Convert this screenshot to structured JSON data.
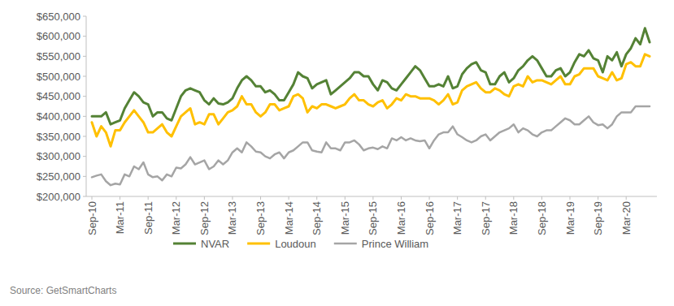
{
  "chart_data": {
    "type": "line",
    "source": "Source: GetSmartCharts",
    "categories": [
      "Sep-10",
      null,
      null,
      null,
      null,
      null,
      "Mar-11",
      null,
      null,
      null,
      null,
      null,
      "Sep-11",
      null,
      null,
      null,
      null,
      null,
      "Mar-12",
      null,
      null,
      null,
      null,
      null,
      "Sep-12",
      null,
      null,
      null,
      null,
      null,
      "Mar-13",
      null,
      null,
      null,
      null,
      null,
      "Sep-13",
      null,
      null,
      null,
      null,
      null,
      "Mar-14",
      null,
      null,
      null,
      null,
      null,
      "Sep-14",
      null,
      null,
      null,
      null,
      null,
      "Mar-15",
      null,
      null,
      null,
      null,
      null,
      "Sep-15",
      null,
      null,
      null,
      null,
      null,
      "Mar-16",
      null,
      null,
      null,
      null,
      null,
      "Sep-16",
      null,
      null,
      null,
      null,
      null,
      "Mar-17",
      null,
      null,
      null,
      null,
      null,
      "Sep-17",
      null,
      null,
      null,
      null,
      null,
      "Mar-18",
      null,
      null,
      null,
      null,
      null,
      "Sep-18",
      null,
      null,
      null,
      null,
      null,
      "Mar-19",
      null,
      null,
      null,
      null,
      null,
      "Sep-19",
      null,
      null,
      null,
      null,
      null,
      "Mar-20",
      null,
      null,
      null,
      null,
      null
    ],
    "series": [
      {
        "name": "NVAR",
        "color": "#548235",
        "values": [
          400000,
          400000,
          400000,
          410000,
          380000,
          385000,
          390000,
          420000,
          440000,
          460000,
          450000,
          435000,
          430000,
          400000,
          410000,
          410000,
          395000,
          390000,
          420000,
          450000,
          465000,
          470000,
          465000,
          460000,
          440000,
          430000,
          445000,
          432000,
          430000,
          435000,
          445000,
          470000,
          490000,
          500000,
          490000,
          475000,
          475000,
          460000,
          465000,
          455000,
          440000,
          440000,
          460000,
          480000,
          510000,
          500000,
          495000,
          470000,
          480000,
          485000,
          490000,
          455000,
          465000,
          475000,
          485000,
          495000,
          510000,
          510000,
          500000,
          500000,
          480000,
          465000,
          490000,
          485000,
          470000,
          465000,
          480000,
          495000,
          510000,
          525000,
          515000,
          495000,
          475000,
          475000,
          480000,
          475000,
          500000,
          470000,
          475000,
          505000,
          520000,
          530000,
          535000,
          515000,
          510000,
          480000,
          480000,
          500000,
          510000,
          485000,
          495000,
          515000,
          525000,
          540000,
          550000,
          540000,
          520000,
          500000,
          500000,
          515000,
          520000,
          500000,
          510000,
          535000,
          555000,
          550000,
          565000,
          545000,
          540000,
          510000,
          550000,
          540000,
          560000,
          525000,
          555000,
          570000,
          595000,
          580000,
          620000,
          585000
        ]
      },
      {
        "name": "Loudoun",
        "color": "#ffc000",
        "values": [
          385000,
          350000,
          375000,
          360000,
          325000,
          365000,
          365000,
          385000,
          400000,
          415000,
          400000,
          385000,
          360000,
          360000,
          370000,
          380000,
          360000,
          350000,
          375000,
          400000,
          410000,
          420000,
          380000,
          385000,
          380000,
          405000,
          405000,
          380000,
          395000,
          410000,
          415000,
          425000,
          450000,
          430000,
          430000,
          410000,
          400000,
          410000,
          430000,
          430000,
          415000,
          420000,
          425000,
          450000,
          455000,
          445000,
          410000,
          425000,
          420000,
          430000,
          430000,
          425000,
          420000,
          425000,
          430000,
          445000,
          455000,
          440000,
          440000,
          430000,
          425000,
          435000,
          440000,
          420000,
          430000,
          445000,
          440000,
          455000,
          450000,
          450000,
          445000,
          445000,
          445000,
          440000,
          430000,
          440000,
          455000,
          430000,
          435000,
          465000,
          475000,
          480000,
          485000,
          470000,
          460000,
          460000,
          470000,
          465000,
          455000,
          450000,
          475000,
          480000,
          475000,
          500000,
          485000,
          490000,
          490000,
          485000,
          480000,
          490000,
          500000,
          480000,
          480000,
          500000,
          505000,
          520000,
          520000,
          520000,
          500000,
          495000,
          490000,
          510000,
          490000,
          495000,
          530000,
          535000,
          525000,
          525000,
          555000,
          550000
        ]
      },
      {
        "name": "Prince William",
        "color": "#a5a5a5",
        "values": [
          248000,
          252000,
          255000,
          238000,
          228000,
          232000,
          230000,
          255000,
          250000,
          275000,
          268000,
          285000,
          255000,
          248000,
          250000,
          240000,
          255000,
          250000,
          272000,
          270000,
          280000,
          298000,
          280000,
          285000,
          290000,
          268000,
          275000,
          290000,
          280000,
          290000,
          310000,
          320000,
          310000,
          335000,
          325000,
          312000,
          310000,
          300000,
          295000,
          305000,
          310000,
          295000,
          310000,
          315000,
          325000,
          335000,
          335000,
          315000,
          312000,
          310000,
          335000,
          320000,
          320000,
          315000,
          335000,
          335000,
          340000,
          330000,
          315000,
          320000,
          322000,
          318000,
          325000,
          320000,
          345000,
          340000,
          348000,
          340000,
          345000,
          340000,
          338000,
          340000,
          320000,
          340000,
          355000,
          360000,
          360000,
          375000,
          355000,
          348000,
          340000,
          335000,
          340000,
          350000,
          355000,
          340000,
          350000,
          360000,
          365000,
          370000,
          380000,
          360000,
          370000,
          365000,
          355000,
          350000,
          360000,
          365000,
          365000,
          375000,
          385000,
          395000,
          390000,
          380000,
          380000,
          390000,
          400000,
          385000,
          378000,
          380000,
          370000,
          380000,
          400000,
          410000,
          410000,
          410000,
          425000,
          425000,
          425000,
          425000
        ]
      }
    ],
    "ylim": [
      200000,
      650000
    ],
    "yticks": [
      {
        "value": 200000,
        "label": "$200,000"
      },
      {
        "value": 250000,
        "label": "$250,000"
      },
      {
        "value": 300000,
        "label": "$300,000"
      },
      {
        "value": 350000,
        "label": "$350,000"
      },
      {
        "value": 400000,
        "label": "$400,000"
      },
      {
        "value": 450000,
        "label": "$450,000"
      },
      {
        "value": 500000,
        "label": "$500,000"
      },
      {
        "value": 550000,
        "label": "$550,000"
      },
      {
        "value": 600000,
        "label": "$600,000"
      },
      {
        "value": 650000,
        "label": "$650,000"
      }
    ],
    "grid": false,
    "legend": "bottom"
  }
}
